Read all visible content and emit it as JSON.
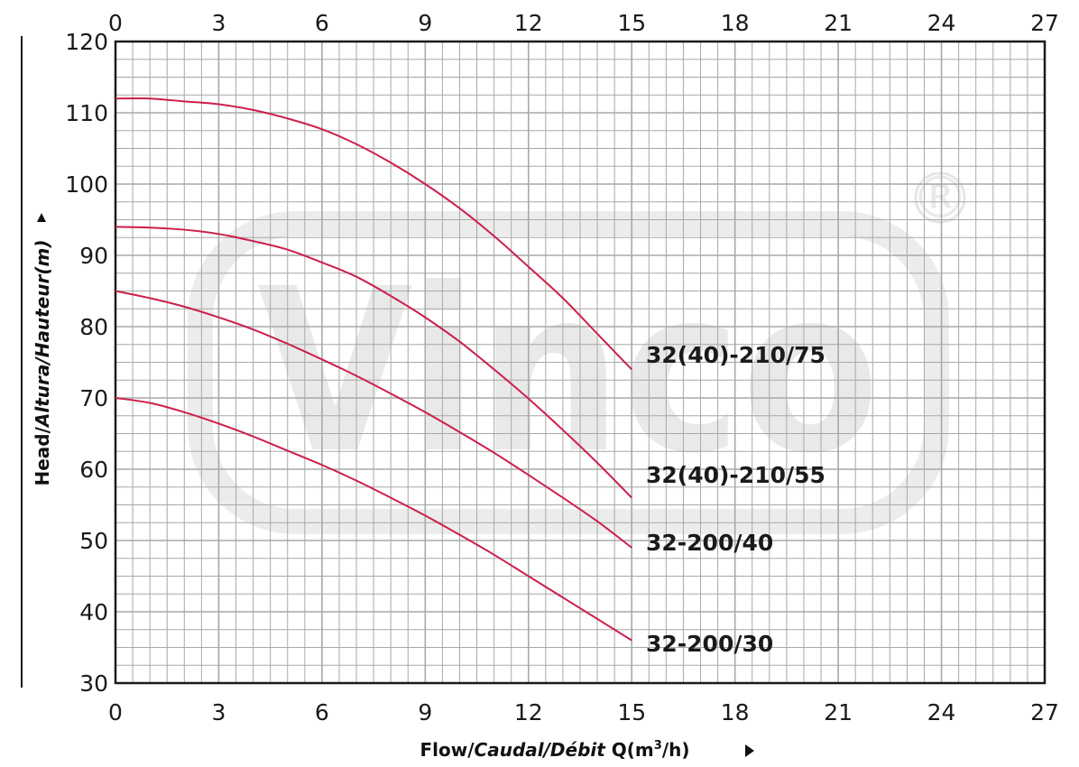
{
  "chart_data": {
    "type": "line",
    "title": "",
    "watermark": "Vinco",
    "watermark_mark": "®",
    "xlabel": {
      "part1": "Flow/",
      "part2": "Caudal/Débit",
      "part3": " Q(m",
      "part4": "3",
      "part5": "/h)"
    },
    "ylabel": {
      "part1": "Head/",
      "part2": "Altura/Hauteur(m)"
    },
    "xlim": [
      0,
      27
    ],
    "ylim": [
      30,
      120
    ],
    "x_ticks": [
      "0",
      "3",
      "6",
      "9",
      "12",
      "15",
      "18",
      "21",
      "24",
      "27"
    ],
    "y_ticks": [
      "30",
      "40",
      "50",
      "60",
      "70",
      "80",
      "90",
      "100",
      "110",
      "120"
    ],
    "grid": true,
    "colors": {
      "curve": "#cc1f4a",
      "grid": "#a8a8a8",
      "frame": "#1a1a1a",
      "watermark": "#e9e9e9"
    },
    "series": [
      {
        "name": "32(40)-210/75",
        "x": [
          0,
          1,
          2,
          3,
          4,
          5,
          6,
          7,
          8,
          9,
          10,
          11,
          12,
          13,
          14,
          15
        ],
        "y": [
          112,
          112,
          111.6,
          111.2,
          110.4,
          109.2,
          107.7,
          105.6,
          103,
          100,
          96.6,
          92.7,
          88.4,
          84,
          79,
          74
        ]
      },
      {
        "name": "32(40)-210/55",
        "x": [
          0,
          1,
          2,
          3,
          4,
          5,
          6,
          7,
          8,
          9,
          10,
          11,
          12,
          13,
          14,
          15
        ],
        "y": [
          94,
          93.9,
          93.6,
          93,
          92,
          90.8,
          89,
          87,
          84.3,
          81.3,
          77.9,
          74,
          69.9,
          65.5,
          60.9,
          56
        ]
      },
      {
        "name": "32-200/40",
        "x": [
          0,
          1,
          2,
          3,
          4,
          5,
          6,
          7,
          8,
          9,
          10,
          11,
          12,
          13,
          14,
          15
        ],
        "y": [
          85,
          84,
          82.8,
          81.3,
          79.6,
          77.6,
          75.4,
          73.1,
          70.6,
          68,
          65.2,
          62.3,
          59.2,
          56,
          52.7,
          49
        ]
      },
      {
        "name": "32-200/30",
        "x": [
          0,
          1,
          2,
          3,
          4,
          5,
          6,
          7,
          8,
          9,
          10,
          11,
          12,
          13,
          14,
          15
        ],
        "y": [
          70,
          69.3,
          68,
          66.4,
          64.6,
          62.6,
          60.6,
          58.4,
          56,
          53.5,
          50.8,
          48,
          45,
          42,
          39,
          36
        ]
      }
    ]
  }
}
